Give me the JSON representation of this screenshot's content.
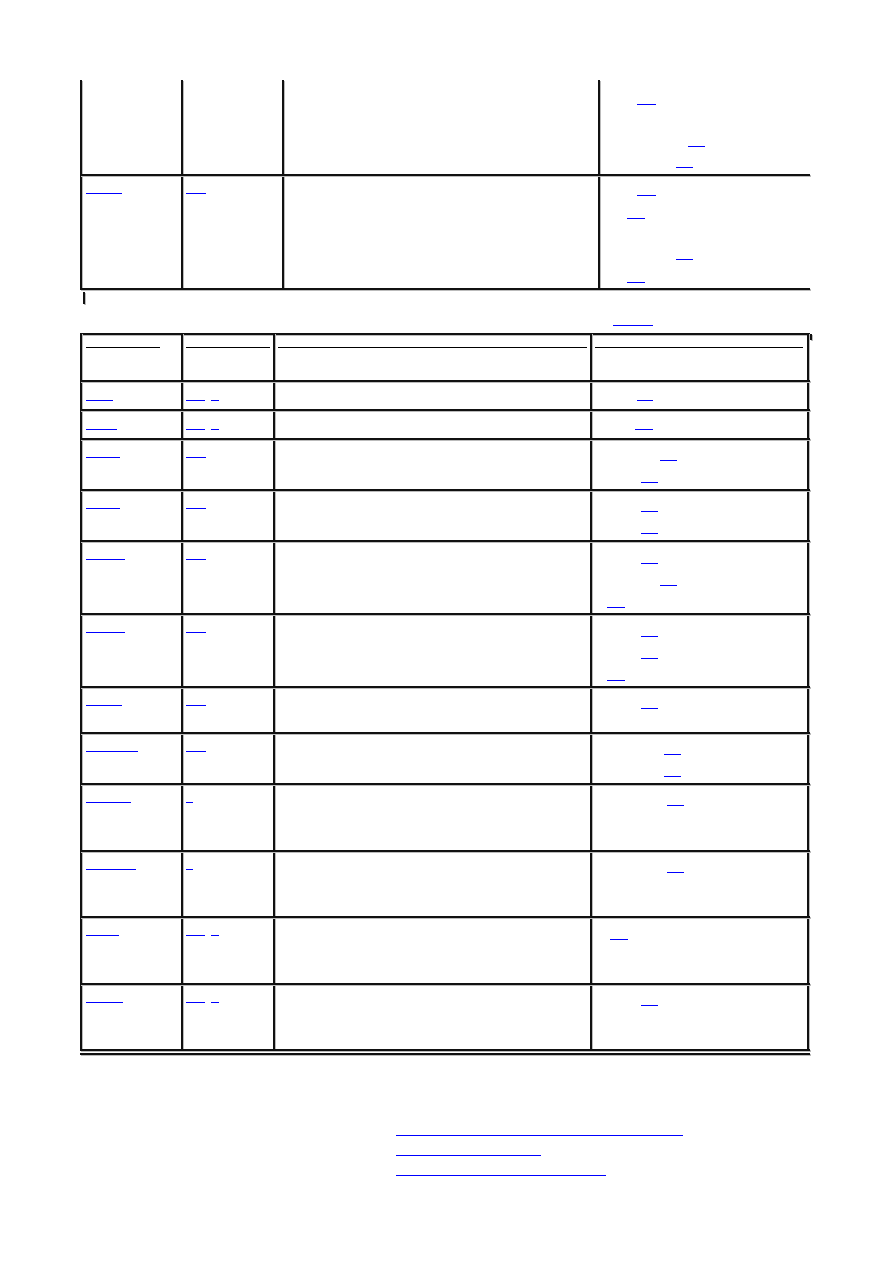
{
  "colors": {
    "link": "#0000ff",
    "border": "#111111"
  },
  "top_table": {
    "rows": 2,
    "columns": 4
  },
  "main_table": {
    "rows": 12,
    "columns": 4,
    "header_rows": 1
  },
  "footer_links": 3
}
